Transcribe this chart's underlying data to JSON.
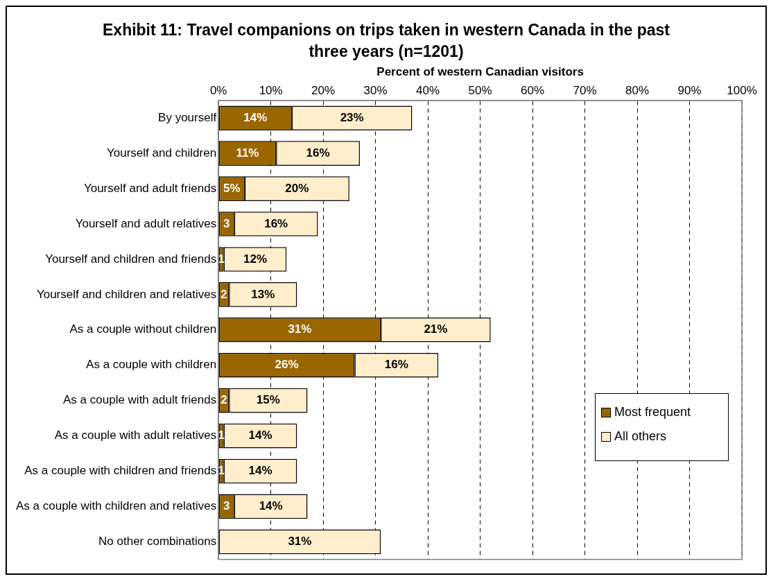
{
  "chart_data": {
    "type": "bar",
    "orientation": "horizontal",
    "stacked": true,
    "title": "Exhibit 11: Travel companions on trips taken in western Canada in the past three years (n=1201)",
    "xlabel": "Percent of western Canadian visitors",
    "categories": [
      "By yourself",
      "Yourself and children",
      "Yourself and adult friends",
      "Yourself and adult relatives",
      "Yourself and children and friends",
      "Yourself and children and relatives",
      "As a couple without children",
      "As a couple with children",
      "As a couple with adult friends",
      "As a couple with adult relatives",
      "As a couple with children and friends",
      "As a couple with children and relatives",
      "No other combinations"
    ],
    "series": [
      {
        "name": "Most frequent",
        "color": "#996600",
        "values": [
          14,
          11,
          5,
          3,
          1,
          2,
          31,
          26,
          2,
          1,
          1,
          3,
          0
        ],
        "value_labels": [
          "14%",
          "11%",
          "5%",
          "3",
          "1",
          "2",
          "31%",
          "26%",
          "2",
          "1",
          "1",
          "3",
          null
        ]
      },
      {
        "name": "All others",
        "color": "#ffeecc",
        "values": [
          23,
          16,
          20,
          16,
          12,
          13,
          21,
          16,
          15,
          14,
          14,
          14,
          31
        ],
        "value_labels": [
          "23%",
          "16%",
          "20%",
          "16%",
          "12%",
          "13%",
          "21%",
          "16%",
          "15%",
          "14%",
          "14%",
          "14%",
          "31%"
        ]
      }
    ],
    "xlim": [
      0,
      100
    ],
    "xticks": [
      {
        "value": 0,
        "label": "0%"
      },
      {
        "value": 10,
        "label": "10%"
      },
      {
        "value": 20,
        "label": "20%"
      },
      {
        "value": 30,
        "label": "30%"
      },
      {
        "value": 40,
        "label": "40%"
      },
      {
        "value": 50,
        "label": "50%"
      },
      {
        "value": 60,
        "label": "60%"
      },
      {
        "value": 70,
        "label": "70%"
      },
      {
        "value": 80,
        "label": "80%"
      },
      {
        "value": 90,
        "label": "90%"
      },
      {
        "value": 100,
        "label": "100%"
      }
    ],
    "grid": "x",
    "legend": "right"
  }
}
